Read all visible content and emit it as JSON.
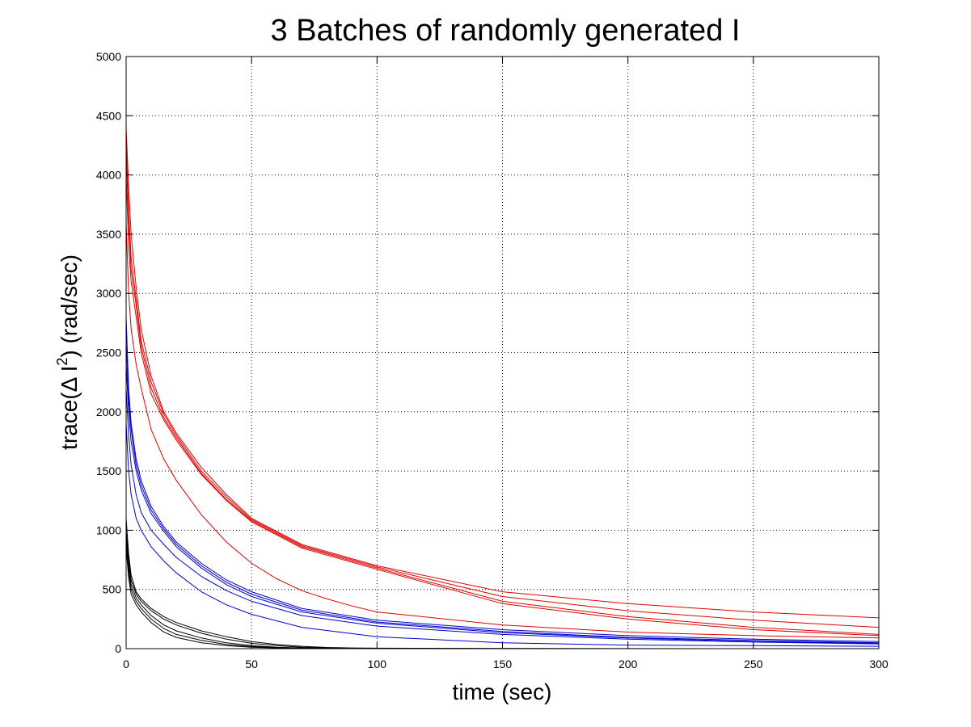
{
  "chart_data": {
    "type": "line",
    "title": "3 Batches of randomly generated I",
    "xlabel": "time (sec)",
    "ylabel": {
      "prefix": "trace(Δ I",
      "superscript": "2",
      "suffix": ") (rad/sec)"
    },
    "xlim": [
      0,
      300
    ],
    "ylim": [
      0,
      5000
    ],
    "x_ticks": [
      0,
      50,
      100,
      150,
      200,
      250,
      300
    ],
    "y_ticks": [
      0,
      500,
      1000,
      1500,
      2000,
      2500,
      3000,
      3500,
      4000,
      4500,
      5000
    ],
    "grid": true,
    "colors": {
      "red": "#e00000",
      "blue": "#0000cc",
      "black": "#000000"
    },
    "series": [
      {
        "color": "red",
        "x": [
          0,
          1,
          2,
          4,
          6,
          10,
          15,
          20,
          30,
          40,
          50,
          70,
          100,
          150,
          200,
          250,
          300
        ],
        "values": [
          4400,
          3900,
          3500,
          3050,
          2700,
          2300,
          2000,
          1820,
          1530,
          1300,
          1100,
          880,
          700,
          480,
          380,
          310,
          260
        ]
      },
      {
        "color": "red",
        "x": [
          0,
          1,
          2,
          4,
          6,
          10,
          15,
          20,
          30,
          40,
          50,
          70,
          100,
          150,
          200,
          250,
          300
        ],
        "values": [
          4300,
          3700,
          3300,
          2950,
          2600,
          2250,
          1980,
          1800,
          1500,
          1280,
          1090,
          870,
          690,
          440,
          320,
          240,
          180
        ]
      },
      {
        "color": "red",
        "x": [
          0,
          1,
          2,
          4,
          6,
          10,
          15,
          20,
          30,
          40,
          50,
          70,
          100,
          150,
          200,
          250,
          300
        ],
        "values": [
          4200,
          3600,
          3200,
          2900,
          2550,
          2200,
          1950,
          1780,
          1480,
          1260,
          1080,
          860,
          680,
          400,
          270,
          180,
          120
        ]
      },
      {
        "color": "red",
        "x": [
          0,
          1,
          2,
          4,
          6,
          10,
          15,
          20,
          30,
          40,
          50,
          70,
          100,
          150,
          200,
          250,
          300
        ],
        "values": [
          4000,
          3400,
          3100,
          2800,
          2500,
          2150,
          1930,
          1760,
          1470,
          1250,
          1070,
          850,
          670,
          380,
          250,
          160,
          110
        ]
      },
      {
        "color": "red",
        "x": [
          0,
          1,
          2,
          4,
          6,
          10,
          15,
          20,
          30,
          40,
          50,
          60,
          70,
          80,
          90,
          100,
          150,
          200,
          250,
          300
        ],
        "values": [
          3600,
          3000,
          2700,
          2400,
          2200,
          1850,
          1600,
          1420,
          1130,
          900,
          720,
          590,
          490,
          420,
          360,
          310,
          200,
          140,
          110,
          90
        ]
      },
      {
        "color": "blue",
        "x": [
          0,
          1,
          2,
          4,
          6,
          10,
          15,
          20,
          30,
          40,
          50,
          70,
          100,
          150,
          200,
          250,
          300
        ],
        "values": [
          2800,
          2200,
          1900,
          1600,
          1420,
          1200,
          1030,
          900,
          720,
          580,
          480,
          340,
          240,
          160,
          110,
          80,
          60
        ]
      },
      {
        "color": "blue",
        "x": [
          0,
          1,
          2,
          4,
          6,
          10,
          15,
          20,
          30,
          40,
          50,
          70,
          100,
          150,
          200,
          250,
          300
        ],
        "values": [
          2600,
          2100,
          1850,
          1550,
          1380,
          1170,
          1010,
          880,
          700,
          560,
          460,
          325,
          225,
          145,
          95,
          70,
          50
        ]
      },
      {
        "color": "blue",
        "x": [
          0,
          1,
          2,
          4,
          6,
          10,
          15,
          20,
          30,
          40,
          50,
          70,
          100,
          150,
          200,
          250,
          300
        ],
        "values": [
          2400,
          2000,
          1750,
          1500,
          1340,
          1140,
          990,
          860,
          680,
          540,
          440,
          310,
          215,
          135,
          90,
          60,
          45
        ]
      },
      {
        "color": "blue",
        "x": [
          0,
          1,
          2,
          4,
          6,
          10,
          15,
          20,
          30,
          40,
          50,
          70,
          100,
          150,
          200,
          250,
          300
        ],
        "values": [
          2200,
          1800,
          1550,
          1300,
          1150,
          1000,
          880,
          770,
          610,
          490,
          400,
          280,
          190,
          120,
          80,
          55,
          40
        ]
      },
      {
        "color": "blue",
        "x": [
          0,
          1,
          2,
          4,
          6,
          10,
          15,
          20,
          30,
          40,
          50,
          70,
          100,
          150,
          200,
          250,
          300
        ],
        "values": [
          1900,
          1500,
          1300,
          1100,
          1000,
          860,
          740,
          640,
          480,
          370,
          290,
          180,
          100,
          50,
          30,
          25,
          20
        ]
      },
      {
        "color": "black",
        "x": [
          0,
          1,
          2,
          4,
          6,
          10,
          15,
          20,
          30,
          40,
          50,
          60,
          70,
          80,
          90,
          100,
          150,
          200,
          250,
          300
        ],
        "values": [
          1100,
          800,
          620,
          480,
          420,
          340,
          270,
          220,
          150,
          100,
          60,
          35,
          20,
          10,
          6,
          4,
          2,
          1,
          0,
          0
        ]
      },
      {
        "color": "black",
        "x": [
          0,
          1,
          2,
          4,
          6,
          10,
          15,
          20,
          30,
          40,
          50,
          60,
          70,
          80,
          90,
          100,
          150,
          200,
          250,
          300
        ],
        "values": [
          1000,
          750,
          580,
          460,
          400,
          320,
          250,
          200,
          130,
          80,
          45,
          25,
          12,
          6,
          3,
          2,
          1,
          0,
          0,
          0
        ]
      },
      {
        "color": "black",
        "x": [
          0,
          1,
          2,
          4,
          6,
          10,
          15,
          20,
          30,
          40,
          50,
          60,
          70,
          80,
          90,
          100,
          150,
          200,
          250,
          300
        ],
        "values": [
          950,
          700,
          540,
          430,
          370,
          280,
          200,
          150,
          90,
          50,
          25,
          12,
          6,
          3,
          2,
          1,
          0,
          0,
          0,
          0
        ]
      },
      {
        "color": "black",
        "x": [
          0,
          1,
          2,
          4,
          6,
          10,
          15,
          20,
          30,
          40,
          50,
          60,
          70,
          80,
          90,
          100,
          150,
          200,
          250,
          300
        ],
        "values": [
          900,
          650,
          500,
          400,
          340,
          250,
          170,
          120,
          70,
          35,
          18,
          9,
          4,
          2,
          1,
          0,
          0,
          0,
          0,
          0
        ]
      },
      {
        "color": "black",
        "x": [
          0,
          1,
          2,
          4,
          6,
          10,
          15,
          20,
          30,
          40,
          50,
          60,
          70,
          80,
          90,
          100,
          150,
          200,
          250,
          300
        ],
        "values": [
          850,
          600,
          460,
          370,
          310,
          220,
          140,
          95,
          50,
          25,
          12,
          6,
          3,
          1,
          0,
          0,
          0,
          0,
          0,
          0
        ]
      }
    ]
  }
}
